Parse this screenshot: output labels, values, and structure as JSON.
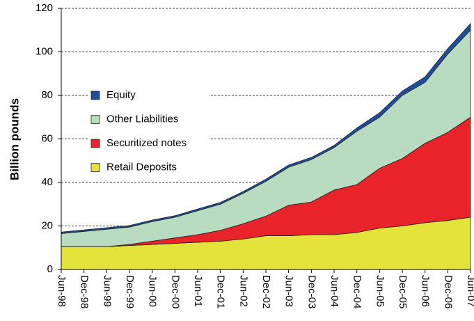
{
  "chart_data": {
    "type": "stacked-area",
    "y_label": "Billion pounds",
    "categories": [
      "Jun-98",
      "Dec-98",
      "Jun-99",
      "Dec-99",
      "Jun-00",
      "Dec-00",
      "Jun-01",
      "Dec-01",
      "Jun-02",
      "Dec-02",
      "Jun-03",
      "Dec-03",
      "Jun-04",
      "Dec-04",
      "Jun-05",
      "Dec-05",
      "Jun-06",
      "Dec-06",
      "Jun-07"
    ],
    "series": [
      {
        "name": "Retail Deposits",
        "color": "#e3e33c",
        "values": [
          10.5,
          10.5,
          10.5,
          11,
          11.5,
          12,
          12.5,
          13,
          14,
          15.5,
          15.5,
          16,
          16,
          17,
          19,
          20,
          21.5,
          22.5,
          24
        ]
      },
      {
        "name": "Securitized notes",
        "color": "#e8232a",
        "values": [
          0,
          0,
          0,
          0.5,
          1.5,
          2.5,
          3.5,
          5,
          7,
          9,
          14,
          15,
          20.5,
          22,
          27.5,
          31,
          36.5,
          40.5,
          46
        ]
      },
      {
        "name": "Other Liabilities",
        "color": "#b9dcc1",
        "values": [
          6,
          7,
          8,
          8,
          9,
          9.5,
          11,
          12,
          14,
          16,
          17.5,
          19.5,
          19.5,
          24.5,
          23.5,
          29,
          28,
          36,
          40
        ]
      },
      {
        "name": "Equity",
        "color": "#1f4e9e",
        "values": [
          0.7,
          0.7,
          0.7,
          0.7,
          0.7,
          0.7,
          0.8,
          0.8,
          0.8,
          1,
          1,
          1,
          1,
          1.5,
          2,
          2,
          2.5,
          2.5,
          3
        ]
      }
    ],
    "ylim": [
      0,
      120
    ],
    "yticks": [
      0,
      20,
      40,
      60,
      80,
      100,
      120
    ],
    "grid": true
  }
}
